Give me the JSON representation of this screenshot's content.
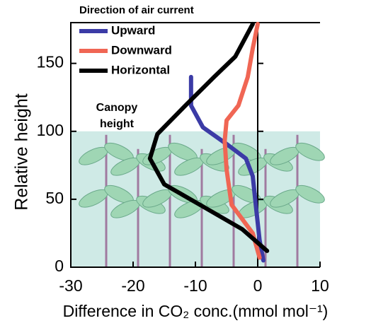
{
  "chart_data": {
    "type": "line",
    "title": "Direction of air current",
    "xlabel": "Difference in CO₂ conc.(mmol mol⁻¹)",
    "ylabel": "Relative height",
    "annotation": [
      "Canopy",
      "height"
    ],
    "canopy_height": 100,
    "canopy_color": "#cfeae6",
    "xlim": [
      -30,
      10
    ],
    "xticks": [
      -30,
      -20,
      -10,
      0,
      10
    ],
    "ylim": [
      0,
      180
    ],
    "yticks": [
      0,
      50,
      100,
      150
    ],
    "zero_line": true,
    "series": [
      {
        "name": "Upward",
        "color": "#3b3ba6",
        "x": [
          0.9,
          0.3,
          -0.2,
          -0.8,
          -1.9,
          -4.8,
          -8.8,
          -10.7,
          -10.7
        ],
        "values": [
          5,
          20,
          41,
          67,
          80,
          90,
          103,
          119,
          140
        ]
      },
      {
        "name": "Downward",
        "color": "#f06654",
        "x": [
          0.3,
          -0.8,
          -4.2,
          -5,
          -5.3,
          -5,
          -3.1,
          -1.6,
          -0.8,
          0
        ],
        "values": [
          7,
          25,
          46,
          72,
          93,
          108,
          119,
          140,
          161,
          179
        ]
      },
      {
        "name": "Horizontal",
        "color": "#000000",
        "x": [
          1.5,
          -2.5,
          -9.3,
          -15,
          -17.3,
          -16.1,
          -11.6,
          -7,
          -3.6,
          -0.8
        ],
        "values": [
          12,
          28,
          46,
          61,
          80,
          98,
          119,
          140,
          155,
          179
        ]
      }
    ]
  }
}
